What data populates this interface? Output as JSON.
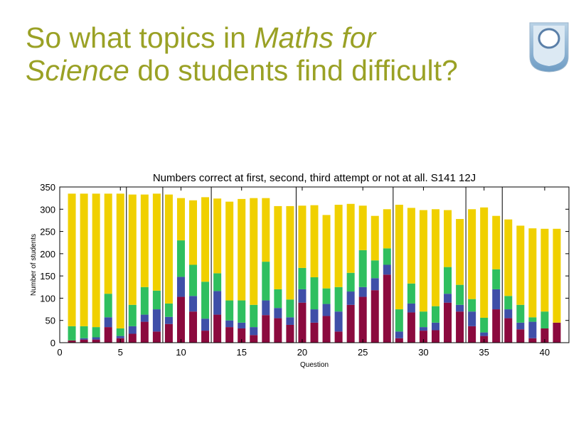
{
  "slide": {
    "title_part1": "So what topics in ",
    "title_em1": "Maths for",
    "title_em2": "Science",
    "title_part2": " do students find difficult?",
    "title_color": "#9aa125",
    "logo_icon": "open-university-shield-icon"
  },
  "chart_data": {
    "type": "bar",
    "stacked": true,
    "title": "Numbers correct at first, second, third attempt or not at all. S141 12J",
    "xlabel": "Question",
    "ylabel": "Number of students",
    "xlim": [
      0,
      42
    ],
    "ylim": [
      0,
      350
    ],
    "xticks": [
      0,
      5,
      10,
      15,
      20,
      25,
      30,
      35,
      40
    ],
    "yticks": [
      0,
      50,
      100,
      150,
      200,
      250,
      300,
      350
    ],
    "grid": false,
    "legend": "none",
    "section_dividers_after_question": [
      5,
      8,
      12,
      19,
      27,
      33,
      36
    ],
    "categories": [
      1,
      2,
      3,
      4,
      5,
      6,
      7,
      8,
      9,
      10,
      11,
      12,
      13,
      14,
      15,
      16,
      17,
      18,
      19,
      20,
      21,
      22,
      23,
      24,
      25,
      26,
      27,
      28,
      29,
      30,
      31,
      32,
      33,
      34,
      35,
      36,
      37,
      38,
      39,
      40,
      41
    ],
    "series": [
      {
        "color": "#8b0a3e",
        "values": [
          5,
          7,
          7,
          35,
          10,
          20,
          47,
          25,
          42,
          103,
          70,
          27,
          63,
          35,
          32,
          17,
          62,
          55,
          40,
          90,
          45,
          60,
          25,
          85,
          103,
          118,
          153,
          10,
          68,
          27,
          28,
          90,
          70,
          37,
          15,
          75,
          55,
          30,
          10,
          32,
          45
        ]
      },
      {
        "color": "#3f4fa8",
        "values": [
          0,
          3,
          5,
          22,
          5,
          17,
          16,
          50,
          16,
          45,
          35,
          27,
          53,
          15,
          13,
          18,
          33,
          23,
          17,
          30,
          30,
          27,
          45,
          30,
          22,
          27,
          22,
          15,
          20,
          8,
          17,
          20,
          15,
          33,
          8,
          45,
          20,
          15,
          37,
          0,
          0
        ]
      },
      {
        "color": "#2fbf5f",
        "values": [
          32,
          27,
          23,
          53,
          17,
          48,
          62,
          42,
          30,
          82,
          70,
          83,
          40,
          45,
          50,
          50,
          87,
          42,
          40,
          48,
          72,
          35,
          55,
          42,
          83,
          40,
          37,
          50,
          45,
          35,
          37,
          60,
          45,
          28,
          33,
          45,
          30,
          40,
          10,
          38,
          0
        ]
      },
      {
        "color": "#f0d000",
        "values": [
          298,
          298,
          300,
          225,
          303,
          248,
          208,
          218,
          245,
          95,
          145,
          190,
          168,
          222,
          228,
          240,
          143,
          187,
          210,
          140,
          162,
          165,
          185,
          155,
          100,
          100,
          88,
          235,
          170,
          228,
          218,
          128,
          148,
          202,
          248,
          120,
          172,
          178,
          200,
          186,
          211
        ]
      }
    ]
  }
}
